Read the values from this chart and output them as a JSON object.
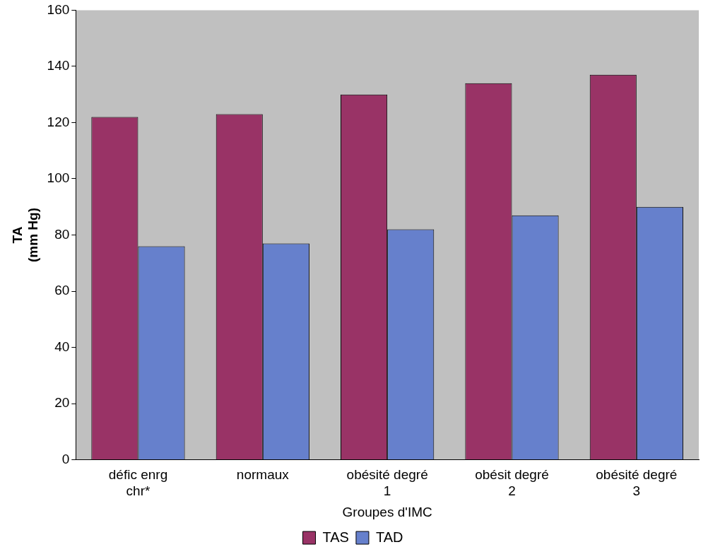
{
  "chart_data": {
    "type": "bar",
    "xlabel": "Groupes d'IMC",
    "ylabel": "TA (mm Hg)",
    "categories": [
      "défic enrg chr*",
      "normaux",
      "obésité degré 1",
      "obésit degré 2",
      "obésité degré 3"
    ],
    "series": [
      {
        "name": "TAS",
        "color": "#993366",
        "values": [
          122,
          123,
          130,
          134,
          137
        ]
      },
      {
        "name": "TAD",
        "color": "#6680cc",
        "values": [
          76,
          77,
          82,
          87,
          90
        ]
      }
    ],
    "ylim": [
      0,
      160
    ],
    "yticks": [
      0,
      20,
      40,
      60,
      80,
      100,
      120,
      140,
      160
    ],
    "grid": false,
    "legend": "bottom"
  }
}
